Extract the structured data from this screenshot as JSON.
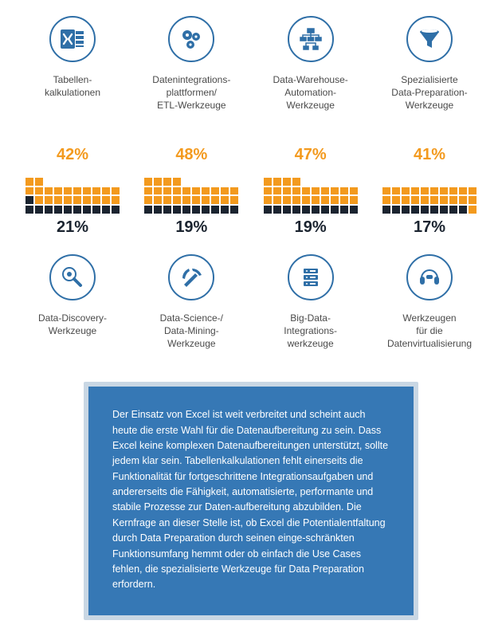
{
  "colors": {
    "circle_border": "#2f6fa7",
    "icon_fill": "#2f6fa7",
    "orange": "#f39a1e",
    "dark": "#1b2430",
    "empty": "#ffffff",
    "callout_bg": "#3678b5",
    "callout_border": "#c9d7e4",
    "text": "#4a4a4a"
  },
  "grid": {
    "cols": 10,
    "rows": 5
  },
  "row1": [
    {
      "icon": "excel",
      "label": "Tabellen-\nkalkulationen"
    },
    {
      "icon": "gears",
      "label": "Datenintegrations-\nplattformen/\nETL-Werkzeuge"
    },
    {
      "icon": "warehouse",
      "label": "Data-Warehouse-\nAutomation-\nWerkzeuge"
    },
    {
      "icon": "funnel",
      "label": "Spezialisierte\nData-Preparation-\nWerkzeuge"
    }
  ],
  "row2": [
    {
      "top_pct": "42%",
      "top_val": 42,
      "bot_pct": "21%",
      "bot_val": 21
    },
    {
      "top_pct": "48%",
      "top_val": 48,
      "bot_pct": "19%",
      "bot_val": 19
    },
    {
      "top_pct": "47%",
      "top_val": 47,
      "bot_pct": "19%",
      "bot_val": 19
    },
    {
      "top_pct": "41%",
      "top_val": 41,
      "bot_pct": "17%",
      "bot_val": 17
    }
  ],
  "row3": [
    {
      "icon": "magnifier",
      "label": "Data-Discovery-\nWerkzeuge"
    },
    {
      "icon": "pickaxe",
      "label": "Data-Science-/\nData-Mining-\nWerkzeuge"
    },
    {
      "icon": "servers",
      "label": "Big-Data-\nIntegrations-\nwerkzeuge"
    },
    {
      "icon": "headset",
      "label": "Werkzeugen\nfür die\nDatenvirtualisierung"
    }
  ],
  "callout": "Der Einsatz von Excel ist weit verbreitet und scheint auch heute die erste Wahl für die Datenaufbereitung zu sein. Dass Excel keine komplexen Datenaufbereitungen unterstützt, sollte jedem klar sein. Tabellenkalkulationen fehlt einerseits die Funktionalität für fortgeschrittene Integrationsaufgaben und andererseits die Fähigkeit, automatisierte, performante und stabile Prozesse zur Daten-aufbereitung abzubilden. Die Kernfrage an dieser Stelle ist, ob Excel die Potentialentfaltung durch Data Preparation durch seinen einge-schränkten Funktionsumfang hemmt oder ob einfach die Use Cases fehlen, die spezialisierte Werkzeuge für Data Preparation erfordern."
}
